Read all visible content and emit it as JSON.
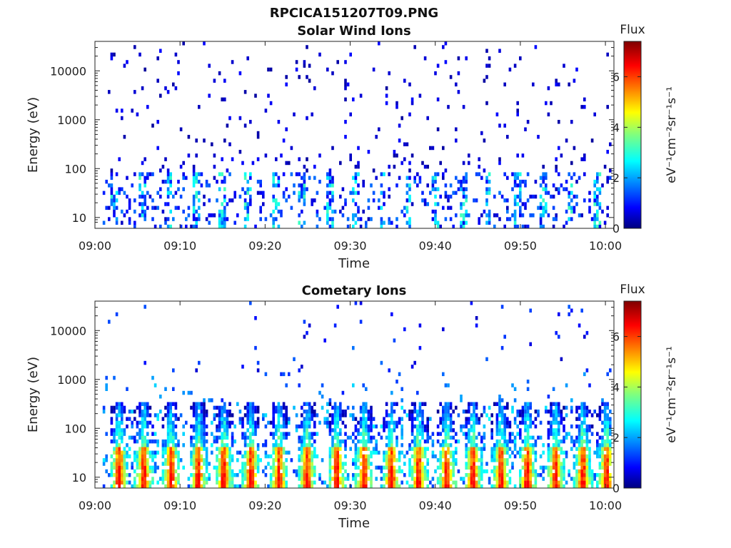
{
  "figure": {
    "title": "RPCICA151207T09.PNG"
  },
  "chart_data": [
    {
      "type": "heatmap",
      "title": "Solar Wind Ions",
      "xlabel": "Time",
      "ylabel": "Energy (eV)",
      "yscale": "log",
      "ylim": [
        6,
        40000
      ],
      "xlim": [
        "09:00",
        "10:01"
      ],
      "x_ticks": [
        "09:00",
        "09:10",
        "09:20",
        "09:30",
        "09:40",
        "09:50",
        "10:00"
      ],
      "y_ticks": [
        "10",
        "100",
        "1000",
        "10000"
      ],
      "colorbar": {
        "title": "Flux",
        "unit": "eV⁻¹cm⁻²sr⁻¹s⁻¹",
        "range": [
          0,
          7.4
        ],
        "ticks": [
          "0",
          "2",
          "4",
          "6"
        ]
      },
      "colormap": "jet",
      "description": "Sparse low-flux counts (mostly 0-2) scattered across all energies; vertical streaks of higher flux (2-4) below ~200 eV recurring roughly every 3 minutes."
    },
    {
      "type": "heatmap",
      "title": "Cometary Ions",
      "xlabel": "Time",
      "ylabel": "Energy (eV)",
      "yscale": "log",
      "ylim": [
        6,
        40000
      ],
      "xlim": [
        "09:00",
        "10:01"
      ],
      "x_ticks": [
        "09:00",
        "09:10",
        "09:20",
        "09:30",
        "09:40",
        "09:50",
        "10:00"
      ],
      "y_ticks": [
        "10",
        "100",
        "1000",
        "10000"
      ],
      "colorbar": {
        "title": "Flux",
        "unit": "eV⁻¹cm⁻²sr⁻¹s⁻¹",
        "range": [
          0,
          7.4
        ],
        "ticks": [
          "0",
          "2",
          "4",
          "6"
        ]
      },
      "colormap": "jet",
      "burst_times_min": [
        2.7,
        5.6,
        8.8,
        12.0,
        15.0,
        18.2,
        21.5,
        24.8,
        28.3,
        31.5,
        34.7,
        37.9,
        41.2,
        44.3,
        47.6,
        50.7,
        54.0,
        57.2,
        60.0
      ],
      "burst_peak_energy_eV": 15,
      "burst_peak_flux": 6.5,
      "description": "Periodic bursts every ~3.2 minutes: high flux (5-6.5) at 6-40 eV, decreasing to 2-3 toward ~300 eV, with sparse counts up to ~10 keV."
    }
  ]
}
